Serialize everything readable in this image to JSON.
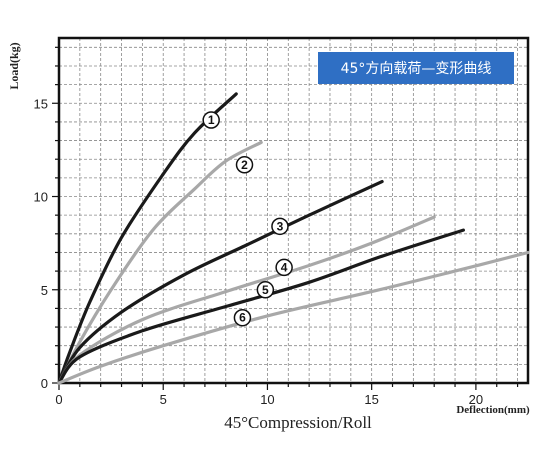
{
  "chart_data": {
    "type": "line",
    "title": "45°方向载荷—变形曲线",
    "xlabel": "Deflection(mm)",
    "ylabel": "Load(kg)",
    "caption": "45°Compression/Roll",
    "xlim": [
      0,
      22.5
    ],
    "ylim": [
      0,
      18.5
    ],
    "x_ticks": [
      "0",
      "5",
      "10",
      "15",
      "20"
    ],
    "y_ticks": [
      "0",
      "5",
      "10",
      "15"
    ],
    "grid": true,
    "legend_position": "top-right",
    "series": [
      {
        "name": "1",
        "color": "#1a1a1a",
        "points": [
          [
            0,
            0
          ],
          [
            0.5,
            1.6
          ],
          [
            1.5,
            4.4
          ],
          [
            3,
            7.8
          ],
          [
            5,
            11.2
          ],
          [
            6.5,
            13.4
          ],
          [
            8.5,
            15.5
          ]
        ],
        "marker_at": [
          7.3,
          14.1
        ]
      },
      {
        "name": "2",
        "color": "#a8a8a8",
        "points": [
          [
            0,
            0
          ],
          [
            1,
            2.2
          ],
          [
            2.5,
            5
          ],
          [
            4.5,
            8.2
          ],
          [
            6.5,
            10.4
          ],
          [
            8,
            11.9
          ],
          [
            9.7,
            12.9
          ]
        ],
        "marker_at": [
          8.9,
          11.7
        ]
      },
      {
        "name": "3",
        "color": "#1a1a1a",
        "points": [
          [
            0,
            0
          ],
          [
            1,
            1.9
          ],
          [
            3,
            3.8
          ],
          [
            6,
            5.8
          ],
          [
            9,
            7.4
          ],
          [
            12,
            9
          ],
          [
            15.5,
            10.8
          ]
        ],
        "marker_at": [
          10.6,
          8.4
        ]
      },
      {
        "name": "4",
        "color": "#a8a8a8",
        "points": [
          [
            0,
            0
          ],
          [
            1,
            1.5
          ],
          [
            4,
            3.4
          ],
          [
            8,
            4.9
          ],
          [
            12,
            6.3
          ],
          [
            15,
            7.5
          ],
          [
            18,
            8.9
          ]
        ],
        "marker_at": [
          10.8,
          6.2
        ]
      },
      {
        "name": "5",
        "color": "#1a1a1a",
        "points": [
          [
            0,
            0
          ],
          [
            1,
            1.4
          ],
          [
            4,
            2.8
          ],
          [
            8,
            4.1
          ],
          [
            12,
            5.4
          ],
          [
            15.5,
            6.8
          ],
          [
            19.4,
            8.2
          ]
        ],
        "marker_at": [
          9.9,
          5
        ]
      },
      {
        "name": "6",
        "color": "#a8a8a8",
        "points": [
          [
            0,
            0
          ],
          [
            2,
            0.9
          ],
          [
            5,
            2
          ],
          [
            10,
            3.6
          ],
          [
            15,
            4.9
          ],
          [
            19,
            6
          ],
          [
            22.5,
            7
          ]
        ],
        "marker_at": [
          8.8,
          3.5
        ]
      }
    ]
  }
}
